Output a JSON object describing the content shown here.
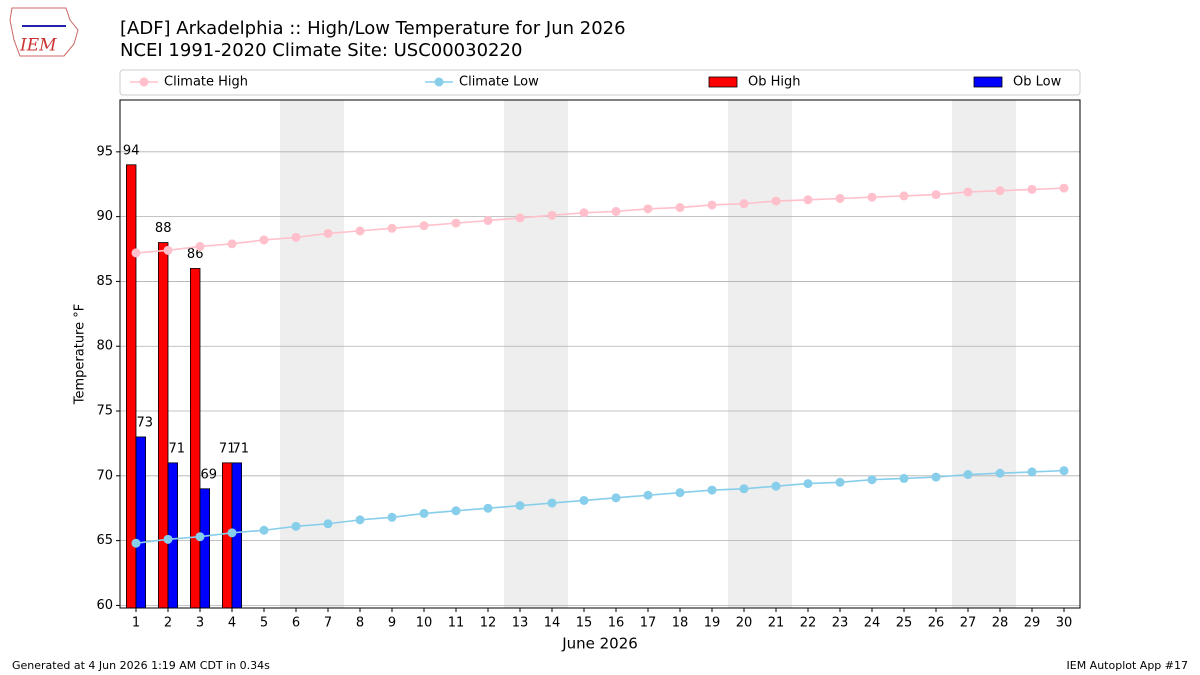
{
  "chart_data": {
    "type": "bar_line",
    "title": "[ADF] Arkadelphia :: High/Low Temperature for Jun 2026",
    "subtitle": "NCEI 1991-2020 Climate Site: USC00030220",
    "logo": "IEM",
    "ylabel": "Temperature °F",
    "xlabel": "June 2026",
    "footer_left": "Generated at 4 Jun 2026 1:19 AM CDT in 0.34s",
    "footer_right": "IEM Autoplot App #17",
    "x": [
      1,
      2,
      3,
      4,
      5,
      6,
      7,
      8,
      9,
      10,
      11,
      12,
      13,
      14,
      15,
      16,
      17,
      18,
      19,
      20,
      21,
      22,
      23,
      24,
      25,
      26,
      27,
      28,
      29,
      30
    ],
    "xlim": [
      0.5,
      30.5
    ],
    "xticks": [
      1,
      2,
      3,
      4,
      5,
      6,
      7,
      8,
      9,
      10,
      11,
      12,
      13,
      14,
      15,
      16,
      17,
      18,
      19,
      20,
      21,
      22,
      23,
      24,
      25,
      26,
      27,
      28,
      29,
      30
    ],
    "ylim": [
      59.8,
      99
    ],
    "yticks": [
      60,
      65,
      70,
      75,
      80,
      85,
      90,
      95
    ],
    "grid": true,
    "shaded_spans": [
      [
        5.5,
        7.5
      ],
      [
        12.5,
        14.5
      ],
      [
        19.5,
        21.5
      ],
      [
        26.5,
        28.5
      ]
    ],
    "series": [
      {
        "name": "Climate High",
        "kind": "line",
        "color": "#ffc0cb",
        "values": [
          87.2,
          87.4,
          87.7,
          87.9,
          88.2,
          88.4,
          88.7,
          88.9,
          89.1,
          89.3,
          89.5,
          89.7,
          89.9,
          90.1,
          90.3,
          90.4,
          90.6,
          90.7,
          90.9,
          91.0,
          91.2,
          91.3,
          91.4,
          91.5,
          91.6,
          91.7,
          91.9,
          92.0,
          92.1,
          92.2
        ]
      },
      {
        "name": "Climate Low",
        "kind": "line",
        "color": "#87ceeb",
        "values": [
          64.8,
          65.1,
          65.3,
          65.6,
          65.8,
          66.1,
          66.3,
          66.6,
          66.8,
          67.1,
          67.3,
          67.5,
          67.7,
          67.9,
          68.1,
          68.3,
          68.5,
          68.7,
          68.9,
          69.0,
          69.2,
          69.4,
          69.5,
          69.7,
          69.8,
          69.9,
          70.1,
          70.2,
          70.3,
          70.4
        ]
      },
      {
        "name": "Ob High",
        "kind": "bar",
        "color": "#ff0000",
        "offset": -1,
        "values": [
          94,
          88,
          86,
          71,
          null,
          null,
          null,
          null,
          null,
          null,
          null,
          null,
          null,
          null,
          null,
          null,
          null,
          null,
          null,
          null,
          null,
          null,
          null,
          null,
          null,
          null,
          null,
          null,
          null,
          null
        ]
      },
      {
        "name": "Ob Low",
        "kind": "bar",
        "color": "#0000ff",
        "offset": 1,
        "values": [
          73,
          71,
          69,
          71,
          null,
          null,
          null,
          null,
          null,
          null,
          null,
          null,
          null,
          null,
          null,
          null,
          null,
          null,
          null,
          null,
          null,
          null,
          null,
          null,
          null,
          null,
          null,
          null,
          null,
          null
        ]
      }
    ]
  }
}
